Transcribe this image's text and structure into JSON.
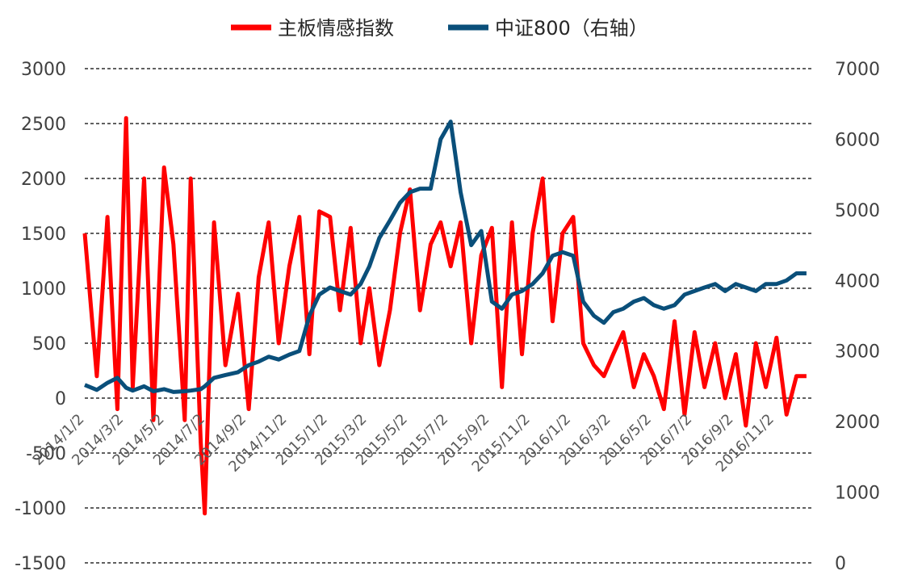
{
  "chart_data": {
    "type": "line",
    "title": "",
    "legend_position": "top-center",
    "grid": "horizontal dashed",
    "x_tick_labels": [
      "2014/1/2",
      "2014/3/2",
      "2014/5/2",
      "2014/7/2",
      "2014/9/2",
      "2014/11/2",
      "2015/1/2",
      "2015/3/2",
      "2015/5/2",
      "2015/7/2",
      "2015/9/2",
      "2015/11/2",
      "2016/1/2",
      "2016/3/2",
      "2016/5/2",
      "2016/7/2",
      "2016/9/2",
      "2016/11/2"
    ],
    "y_left": {
      "range": [
        -1500,
        3000
      ],
      "ticks": [
        "3000",
        "2500",
        "2000",
        "1500",
        "1000",
        "500",
        "0",
        "-500",
        "-1000",
        "-1500"
      ]
    },
    "y_right": {
      "range": [
        0,
        7000
      ],
      "ticks": [
        "7000",
        "6000",
        "5000",
        "4000",
        "3000",
        "2000",
        "1000",
        "0"
      ]
    },
    "series": [
      {
        "name": "主板情感指数",
        "color": "#ff0000",
        "axis": "left",
        "x": [
          "2014/1/2",
          "2014/1/20",
          "2014/2/5",
          "2014/2/20",
          "2014/3/5",
          "2014/3/15",
          "2014/4/1",
          "2014/4/15",
          "2014/5/1",
          "2014/5/15",
          "2014/6/1",
          "2014/6/10",
          "2014/6/25",
          "2014/7/1",
          "2014/7/15",
          "2014/8/1",
          "2014/8/20",
          "2014/9/5",
          "2014/9/20",
          "2014/10/5",
          "2014/10/20",
          "2014/11/5",
          "2014/11/20",
          "2014/12/5",
          "2014/12/20",
          "2015/1/5",
          "2015/1/20",
          "2015/2/5",
          "2015/2/20",
          "2015/3/5",
          "2015/3/20",
          "2015/4/5",
          "2015/4/20",
          "2015/5/5",
          "2015/5/20",
          "2015/6/5",
          "2015/6/20",
          "2015/7/5",
          "2015/7/20",
          "2015/8/5",
          "2015/8/20",
          "2015/9/5",
          "2015/9/20",
          "2015/10/5",
          "2015/10/20",
          "2015/11/5",
          "2015/11/20",
          "2015/12/5",
          "2015/12/20",
          "2016/1/5",
          "2016/1/20",
          "2016/2/5",
          "2016/2/20",
          "2016/3/5",
          "2016/3/20",
          "2016/4/5",
          "2016/4/20",
          "2016/5/5",
          "2016/5/20",
          "2016/6/5",
          "2016/6/20",
          "2016/7/5",
          "2016/7/20",
          "2016/8/5",
          "2016/8/20",
          "2016/9/5",
          "2016/9/20",
          "2016/10/5",
          "2016/10/20",
          "2016/11/5",
          "2016/11/20",
          "2016/12/5",
          "2016/12/20"
        ],
        "values": [
          1500,
          200,
          1650,
          -100,
          2550,
          100,
          2000,
          -200,
          2100,
          1400,
          -200,
          2000,
          -400,
          -1050,
          1600,
          300,
          950,
          -100,
          1100,
          1600,
          500,
          1200,
          1650,
          400,
          1700,
          1650,
          800,
          1550,
          500,
          1000,
          300,
          800,
          1500,
          1900,
          800,
          1400,
          1600,
          1200,
          1600,
          500,
          1300,
          1550,
          100,
          1600,
          400,
          1500,
          2000,
          700,
          1500,
          1650,
          500,
          300,
          200,
          400,
          600,
          100,
          400,
          200,
          -100,
          700,
          -150,
          600,
          100,
          500,
          0,
          400,
          -250,
          500,
          100,
          550,
          -150,
          200,
          200
        ]
      },
      {
        "name": "中证800（右轴）",
        "color": "#0a4f7a",
        "axis": "right",
        "x": [
          "2014/1/2",
          "2014/1/20",
          "2014/2/5",
          "2014/2/20",
          "2014/3/5",
          "2014/3/15",
          "2014/4/1",
          "2014/4/15",
          "2014/5/1",
          "2014/5/15",
          "2014/6/1",
          "2014/6/10",
          "2014/6/25",
          "2014/7/1",
          "2014/7/15",
          "2014/8/1",
          "2014/8/20",
          "2014/9/5",
          "2014/9/20",
          "2014/10/5",
          "2014/10/20",
          "2014/11/5",
          "2014/11/20",
          "2014/12/5",
          "2014/12/20",
          "2015/1/5",
          "2015/1/20",
          "2015/2/5",
          "2015/2/20",
          "2015/3/5",
          "2015/3/20",
          "2015/4/5",
          "2015/4/20",
          "2015/5/5",
          "2015/5/20",
          "2015/6/5",
          "2015/6/20",
          "2015/7/5",
          "2015/7/20",
          "2015/8/5",
          "2015/8/20",
          "2015/9/5",
          "2015/9/20",
          "2015/10/5",
          "2015/10/20",
          "2015/11/5",
          "2015/11/20",
          "2015/12/5",
          "2015/12/20",
          "2016/1/5",
          "2016/1/20",
          "2016/2/5",
          "2016/2/20",
          "2016/3/5",
          "2016/3/20",
          "2016/4/5",
          "2016/4/20",
          "2016/5/5",
          "2016/5/20",
          "2016/6/5",
          "2016/6/20",
          "2016/7/5",
          "2016/7/20",
          "2016/8/5",
          "2016/8/20",
          "2016/9/5",
          "2016/9/20",
          "2016/10/5",
          "2016/10/20",
          "2016/11/5",
          "2016/11/20",
          "2016/12/5",
          "2016/12/20"
        ],
        "values": [
          2520,
          2450,
          2550,
          2620,
          2480,
          2440,
          2500,
          2430,
          2460,
          2420,
          2430,
          2440,
          2460,
          2500,
          2620,
          2660,
          2700,
          2800,
          2850,
          2920,
          2880,
          2950,
          3000,
          3500,
          3800,
          3900,
          3850,
          3800,
          3950,
          4200,
          4600,
          4850,
          5100,
          5250,
          5300,
          5300,
          6000,
          6250,
          5250,
          4500,
          4700,
          3700,
          3600,
          3800,
          3850,
          3950,
          4100,
          4350,
          4400,
          4350,
          3700,
          3500,
          3400,
          3550,
          3600,
          3700,
          3750,
          3650,
          3600,
          3650,
          3800,
          3850,
          3900,
          3950,
          3850,
          3950,
          3900,
          3850,
          3950,
          3950,
          4000,
          4100,
          4100
        ]
      }
    ]
  }
}
